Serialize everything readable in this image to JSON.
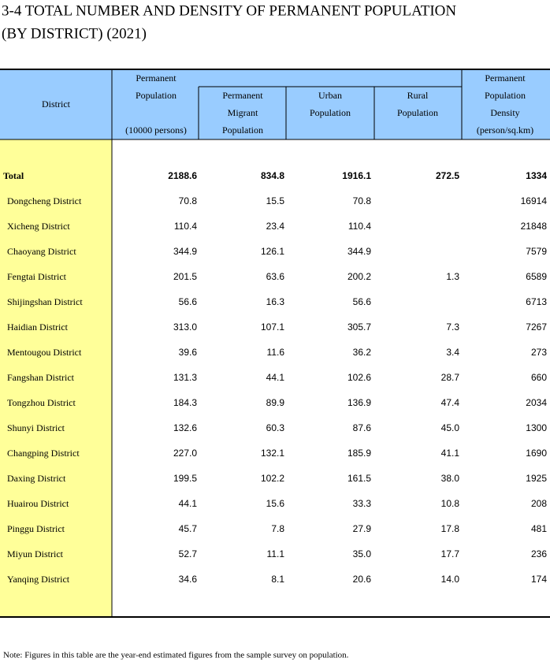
{
  "title": [
    "3-4  TOTAL NUMBER AND DENSITY OF PERMANENT POPULATION",
    " (BY DISTRICT) (2021)"
  ],
  "table": {
    "header": [
      [
        "District"
      ],
      [
        "Permanent",
        "Population",
        "(10000 persons)"
      ],
      [
        "Permanent",
        "Migrant",
        "Population"
      ],
      [
        "Urban",
        "Population"
      ],
      [
        "Rural",
        "Population"
      ],
      [
        "Permanent",
        "Population",
        "Density",
        "(person/sq.km)"
      ]
    ],
    "rows": [
      [
        "Total",
        "2188.6",
        "834.8",
        "1916.1",
        "272.5",
        "1334"
      ],
      [
        "Dongcheng District",
        "70.8",
        "15.5",
        "70.8",
        null,
        "16914"
      ],
      [
        "Xicheng District",
        "110.4",
        "23.4",
        "110.4",
        null,
        "21848"
      ],
      [
        "Chaoyang District",
        "344.9",
        "126.1",
        "344.9",
        null,
        "7579"
      ],
      [
        "Fengtai District",
        "201.5",
        "63.6",
        "200.2",
        "1.3",
        "6589"
      ],
      [
        "Shijingshan District",
        "56.6",
        "16.3",
        "56.6",
        null,
        "6713"
      ],
      [
        "Haidian District",
        "313.0",
        "107.1",
        "305.7",
        "7.3",
        "7267"
      ],
      [
        "Mentougou District",
        "39.6",
        "11.6",
        "36.2",
        "3.4",
        "273"
      ],
      [
        "Fangshan District",
        "131.3",
        "44.1",
        "102.6",
        "28.7",
        "660"
      ],
      [
        "Tongzhou District",
        "184.3",
        "89.9",
        "136.9",
        "47.4",
        "2034"
      ],
      [
        "Shunyi District",
        "132.6",
        "60.3",
        "87.6",
        "45.0",
        "1300"
      ],
      [
        "Changping District",
        "227.0",
        "132.1",
        "185.9",
        "41.1",
        "1690"
      ],
      [
        "Daxing District",
        "199.5",
        "102.2",
        "161.5",
        "38.0",
        "1925"
      ],
      [
        "Huairou District",
        "44.1",
        "15.6",
        "33.3",
        "10.8",
        "208"
      ],
      [
        "Pinggu District",
        "45.7",
        "7.8",
        "27.9",
        "17.8",
        "481"
      ],
      [
        "Miyun District",
        "52.7",
        "11.1",
        "35.0",
        "17.7",
        "236"
      ],
      [
        "Yanqing District",
        "34.6",
        "8.1",
        "20.6",
        "14.0",
        "174"
      ]
    ]
  },
  "note": "Note: Figures in this table are the year-end estimated figures from the sample survey on population."
}
